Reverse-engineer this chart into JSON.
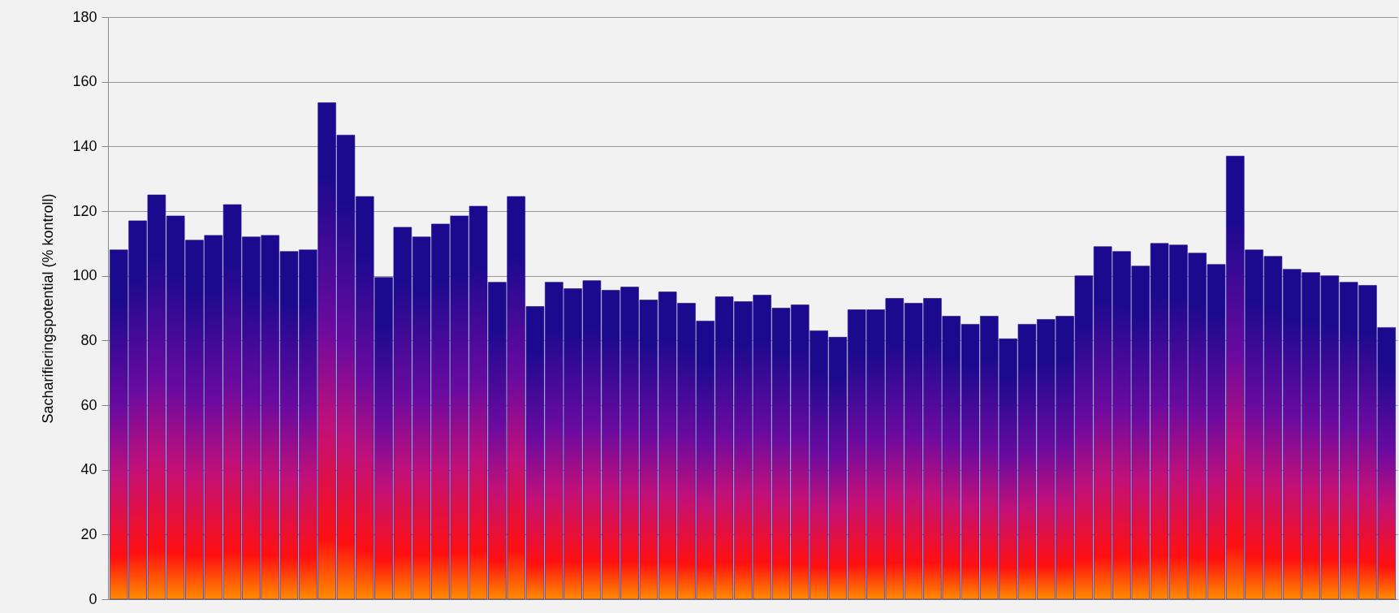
{
  "chart_data": {
    "type": "bar",
    "ylabel": "Sacharifieringspotential (% kontroll)",
    "categories": [
      null,
      null,
      null,
      null,
      null,
      null,
      null,
      null,
      null,
      null,
      null,
      null,
      null,
      null,
      null,
      null,
      null,
      null,
      null,
      null,
      null,
      null,
      null,
      null,
      null,
      null,
      null,
      null,
      null,
      null,
      null,
      null,
      null,
      null,
      null,
      null,
      null,
      null,
      null,
      null,
      null,
      null,
      null,
      null,
      null,
      null,
      null,
      null,
      null,
      null,
      null,
      null,
      null,
      null,
      null,
      null,
      null,
      null,
      null,
      null,
      null,
      null,
      null,
      null,
      null,
      null,
      null,
      null
    ],
    "values": [
      108,
      117,
      125,
      118.5,
      111,
      112.5,
      122,
      112,
      112.5,
      107.5,
      108,
      153.5,
      143.5,
      124.5,
      99.5,
      115,
      112,
      116,
      118.5,
      121.5,
      98,
      124.5,
      90.5,
      98,
      96,
      98.5,
      95.5,
      96.5,
      92.5,
      95,
      91.5,
      86,
      93.5,
      92,
      94,
      90,
      91,
      83,
      81,
      89.5,
      89.5,
      93,
      91.5,
      93,
      87.5,
      85,
      87.5,
      80.5,
      85,
      86.5,
      87.5,
      100,
      109,
      107.5,
      103,
      110,
      109.5,
      107,
      103.5,
      137,
      108,
      106,
      102,
      101,
      100,
      98,
      97,
      84
    ],
    "color": "#1c0a8e",
    "ylim": [
      0,
      180
    ],
    "yticks": [
      0,
      20,
      40,
      60,
      80,
      100,
      120,
      140,
      160,
      180
    ],
    "grid": "y",
    "tick_labels": "y"
  }
}
